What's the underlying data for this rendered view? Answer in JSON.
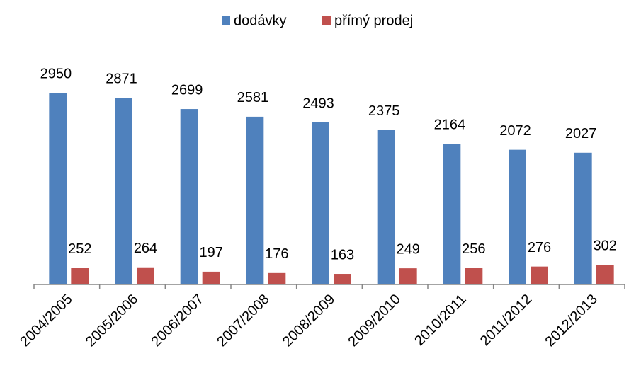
{
  "chart_data": {
    "type": "bar",
    "categories": [
      "2004/2005",
      "2005/2006",
      "2006/2007",
      "2007/2008",
      "2008/2009",
      "2009/2010",
      "2010/2011",
      "2011/2012",
      "2012/2013"
    ],
    "series": [
      {
        "name": "dodávky",
        "color": "#4f81bd",
        "values": [
          2950,
          2871,
          2699,
          2581,
          2493,
          2375,
          2164,
          2072,
          2027
        ]
      },
      {
        "name": "přímý prodej",
        "color": "#c0504d",
        "values": [
          252,
          264,
          197,
          176,
          163,
          249,
          256,
          276,
          302
        ]
      }
    ],
    "legend": "top"
  }
}
